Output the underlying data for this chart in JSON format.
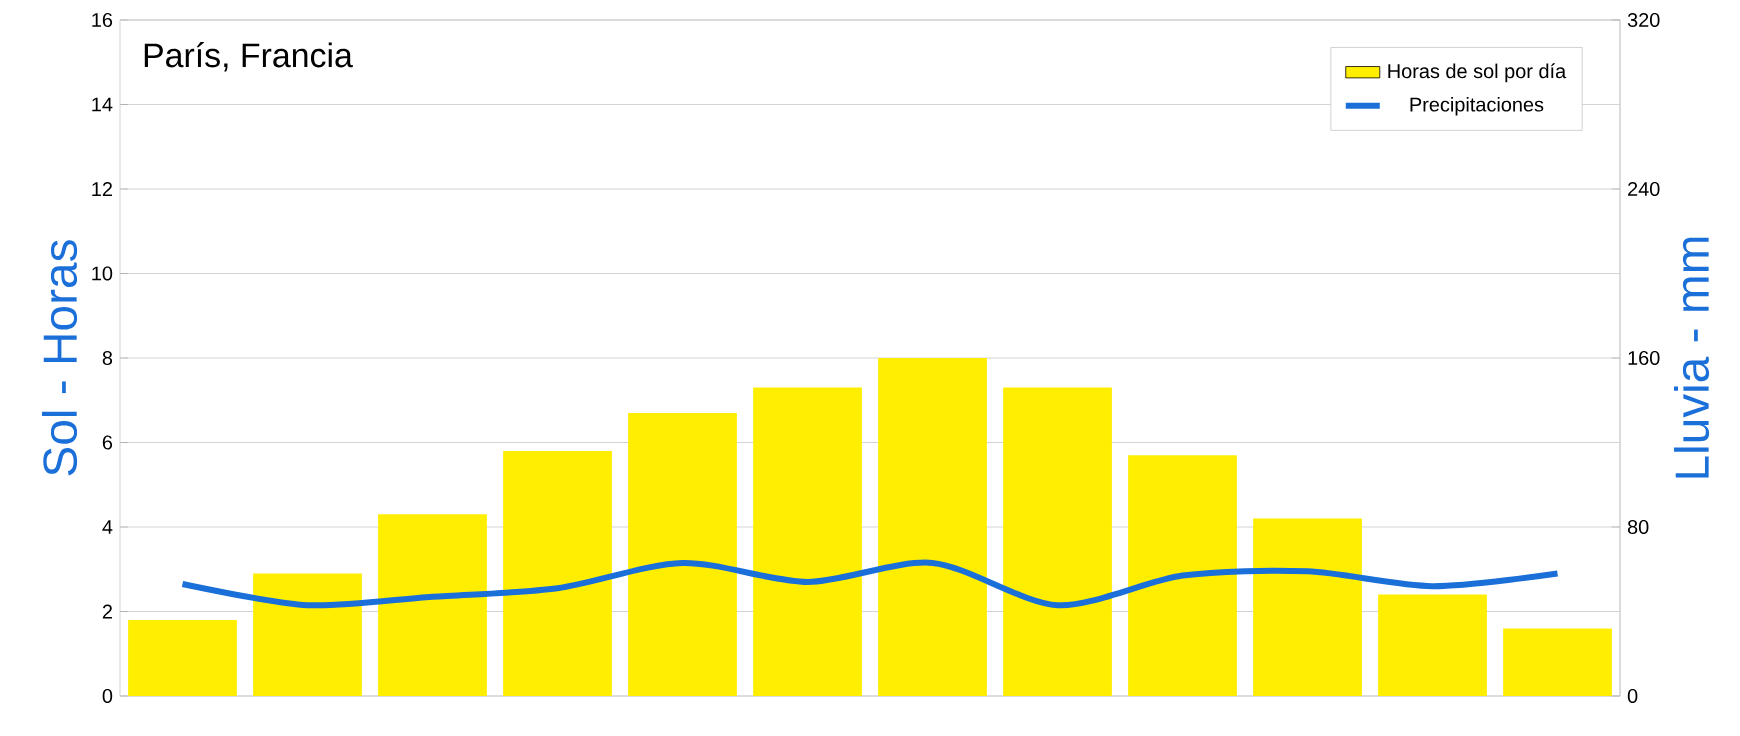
{
  "chart_data": {
    "type": "bar",
    "title": "París, Francia",
    "ylabel": "Sol - Horas",
    "y2label": "Lluvia - mm",
    "categories": [
      null,
      null,
      null,
      null,
      null,
      null,
      null,
      null,
      null,
      null,
      null,
      null
    ],
    "series": [
      {
        "name": "Horas de sol por día",
        "color": "#ffee00",
        "values": [
          1.8,
          2.9,
          4.3,
          5.8,
          6.7,
          7.3,
          8.0,
          7.3,
          5.7,
          4.2,
          2.4,
          1.6
        ]
      },
      {
        "name": "Precipitaciones",
        "type": "line",
        "axis": "y2",
        "color": "#1a6fd8",
        "values": [
          53,
          43,
          47,
          51,
          63,
          54,
          63,
          43,
          57,
          59,
          52,
          58
        ]
      }
    ],
    "ylim": [
      0,
      16
    ],
    "yticks": [
      0,
      2,
      4,
      6,
      8,
      10,
      12,
      14,
      16
    ],
    "y2lim": [
      0,
      320
    ],
    "y2ticks": [
      0,
      80,
      160,
      240,
      320
    ],
    "grid": "y",
    "legend": "top right"
  }
}
